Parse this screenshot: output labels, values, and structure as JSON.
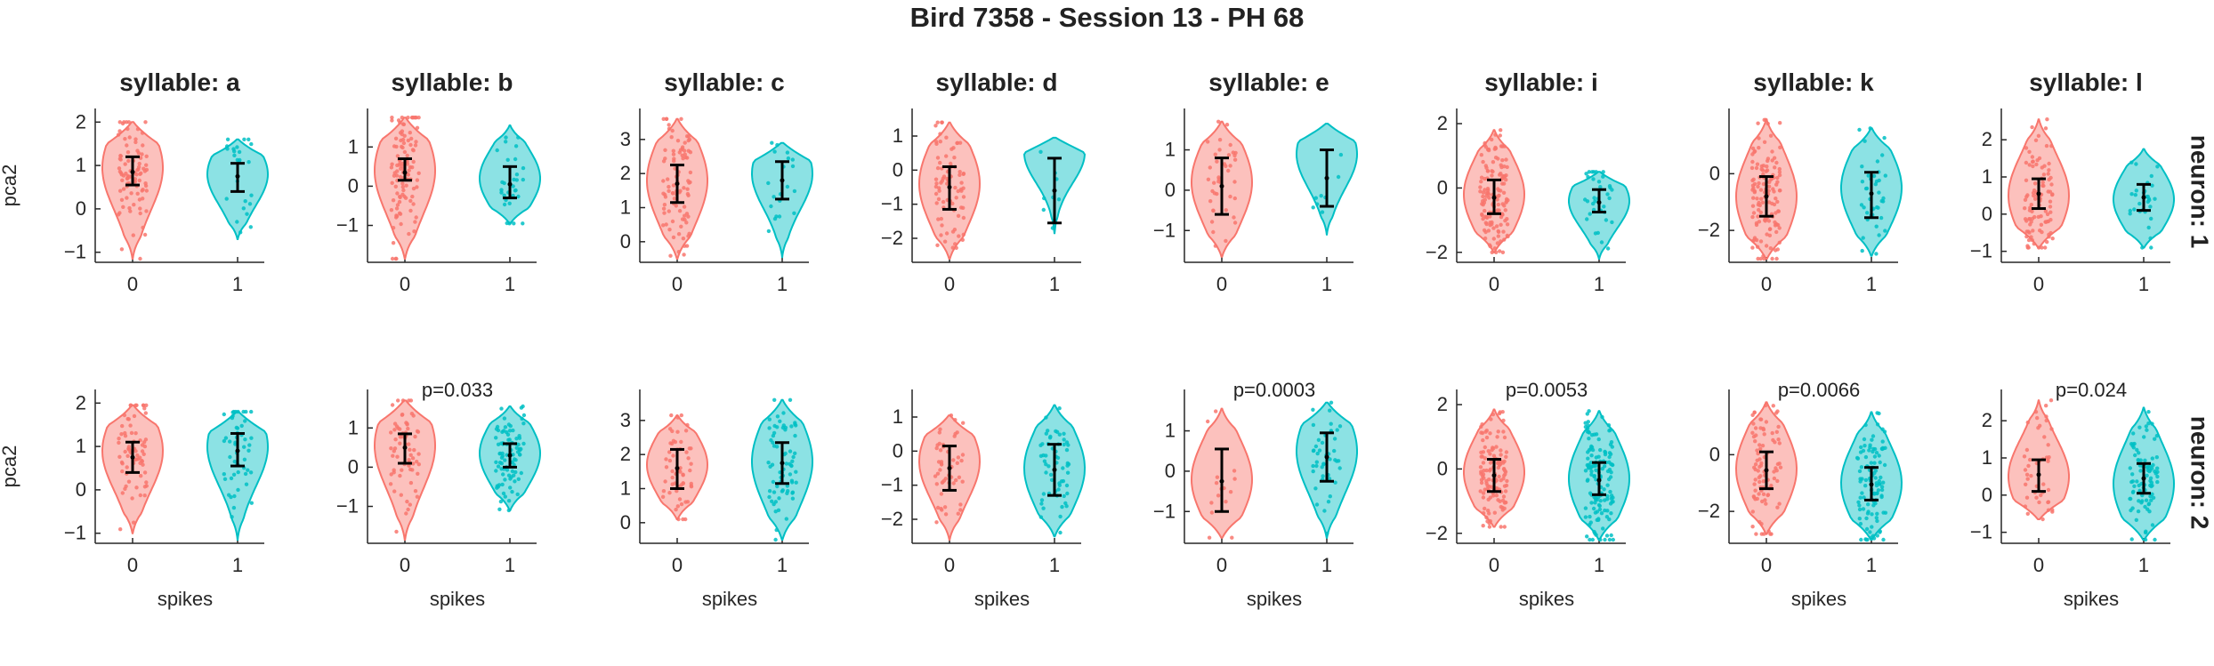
{
  "figure": {
    "title": "Bird 7358 - Session 13 - PH 68",
    "y_axis_label": "pca2",
    "x_axis_label": "spikes",
    "row_label_prefix": "neuron: ",
    "column_label_prefix": "syllable: ",
    "colors": {
      "spikes_0": "#F8766D",
      "spikes_1": "#00BFC4",
      "error_bar": "#000000"
    }
  },
  "chart_data": {
    "type": "violin",
    "x_categories": [
      "0",
      "1"
    ],
    "columns": [
      "a",
      "b",
      "c",
      "d",
      "e",
      "i",
      "k",
      "l"
    ],
    "rows": [
      "1",
      "2"
    ],
    "panels": [
      {
        "row": "1",
        "column": "a",
        "yticks": [
          -1,
          0,
          1,
          2
        ],
        "ylim": [
          -1.15,
          2.15
        ],
        "p_value": "",
        "groups": [
          {
            "spikes": "0",
            "mean": 0.85,
            "err_low": 0.55,
            "err_high": 1.2,
            "min": -1.15,
            "max": 2.0,
            "peak": 0.95,
            "n": 90
          },
          {
            "spikes": "1",
            "mean": 0.75,
            "err_low": 0.4,
            "err_high": 1.05,
            "min": -0.7,
            "max": 1.6,
            "peak": 0.8,
            "n": 25
          }
        ]
      },
      {
        "row": "1",
        "column": "b",
        "yticks": [
          -1,
          0,
          1
        ],
        "ylim": [
          -1.85,
          1.8
        ],
        "p_value": "",
        "groups": [
          {
            "spikes": "0",
            "mean": 0.35,
            "err_low": 0.15,
            "err_high": 0.7,
            "min": -1.85,
            "max": 1.75,
            "peak": 0.4,
            "n": 110
          },
          {
            "spikes": "1",
            "mean": 0.05,
            "err_low": -0.3,
            "err_high": 0.5,
            "min": -0.95,
            "max": 1.55,
            "peak": 0.2,
            "n": 30
          }
        ]
      },
      {
        "row": "1",
        "column": "c",
        "yticks": [
          0,
          1,
          2,
          3
        ],
        "ylim": [
          -0.5,
          3.7
        ],
        "p_value": "",
        "groups": [
          {
            "spikes": "0",
            "mean": 1.7,
            "err_low": 1.15,
            "err_high": 2.25,
            "min": -0.5,
            "max": 3.6,
            "peak": 1.8,
            "n": 90
          },
          {
            "spikes": "1",
            "mean": 1.8,
            "err_low": 1.25,
            "err_high": 2.35,
            "min": -0.45,
            "max": 2.9,
            "peak": 2.0,
            "n": 20
          }
        ]
      },
      {
        "row": "1",
        "column": "d",
        "yticks": [
          -2,
          -1,
          0,
          1
        ],
        "ylim": [
          -2.6,
          1.6
        ],
        "p_value": "",
        "groups": [
          {
            "spikes": "0",
            "mean": -0.5,
            "err_low": -1.15,
            "err_high": 0.1,
            "min": -2.6,
            "max": 1.4,
            "peak": -0.4,
            "n": 80
          },
          {
            "spikes": "1",
            "mean": -0.6,
            "err_low": -1.55,
            "err_high": 0.35,
            "min": -1.85,
            "max": 0.95,
            "peak": 0.5,
            "n": 8
          }
        ]
      },
      {
        "row": "1",
        "column": "e",
        "yticks": [
          -1,
          0,
          1
        ],
        "ylim": [
          -1.7,
          1.85
        ],
        "p_value": "",
        "groups": [
          {
            "spikes": "0",
            "mean": 0.1,
            "err_low": -0.6,
            "err_high": 0.8,
            "min": -1.65,
            "max": 1.7,
            "peak": 0.2,
            "n": 40
          },
          {
            "spikes": "1",
            "mean": 0.3,
            "err_low": -0.4,
            "err_high": 1.0,
            "min": -1.1,
            "max": 1.65,
            "peak": 0.9,
            "n": 8
          }
        ]
      },
      {
        "row": "1",
        "column": "i",
        "yticks": [
          -2,
          0,
          2
        ],
        "ylim": [
          -2.2,
          2.25
        ],
        "p_value": "",
        "groups": [
          {
            "spikes": "0",
            "mean": -0.3,
            "err_low": -0.8,
            "err_high": 0.25,
            "min": -2.0,
            "max": 1.8,
            "peak": -0.2,
            "n": 160
          },
          {
            "spikes": "1",
            "mean": -0.45,
            "err_low": -0.75,
            "err_high": -0.05,
            "min": -2.2,
            "max": 0.5,
            "peak": -0.4,
            "n": 35
          }
        ]
      },
      {
        "row": "1",
        "column": "k",
        "yticks": [
          -2,
          0
        ],
        "ylim": [
          -3.0,
          2.05
        ],
        "p_value": "",
        "groups": [
          {
            "spikes": "0",
            "mean": -0.8,
            "err_low": -1.5,
            "err_high": -0.1,
            "min": -3.0,
            "max": 1.9,
            "peak": -0.8,
            "n": 130
          },
          {
            "spikes": "1",
            "mean": -0.7,
            "err_low": -1.55,
            "err_high": 0.05,
            "min": -2.9,
            "max": 1.6,
            "peak": -0.5,
            "n": 40
          }
        ]
      },
      {
        "row": "1",
        "column": "l",
        "yticks": [
          -1,
          0,
          1,
          2
        ],
        "ylim": [
          -1.2,
          2.65
        ],
        "p_value": "",
        "groups": [
          {
            "spikes": "0",
            "mean": 0.55,
            "err_low": 0.15,
            "err_high": 0.95,
            "min": -0.9,
            "max": 2.55,
            "peak": 0.5,
            "n": 100
          },
          {
            "spikes": "1",
            "mean": 0.45,
            "err_low": 0.1,
            "err_high": 0.8,
            "min": -0.9,
            "max": 1.75,
            "peak": 0.4,
            "n": 30
          }
        ]
      },
      {
        "row": "2",
        "column": "a",
        "yticks": [
          -1,
          0,
          1,
          2
        ],
        "ylim": [
          -1.15,
          2.15
        ],
        "p_value": "",
        "groups": [
          {
            "spikes": "0",
            "mean": 0.75,
            "err_low": 0.4,
            "err_high": 1.1,
            "min": -1.0,
            "max": 1.95,
            "peak": 0.9,
            "n": 70
          },
          {
            "spikes": "1",
            "mean": 0.9,
            "err_low": 0.55,
            "err_high": 1.3,
            "min": -1.15,
            "max": 1.8,
            "peak": 1.0,
            "n": 50
          }
        ]
      },
      {
        "row": "2",
        "column": "b",
        "yticks": [
          -1,
          0,
          1
        ],
        "ylim": [
          -1.85,
          1.8
        ],
        "p_value": "p=0.033",
        "groups": [
          {
            "spikes": "0",
            "mean": 0.5,
            "err_low": 0.1,
            "err_high": 0.85,
            "min": -1.85,
            "max": 1.7,
            "peak": 0.55,
            "n": 70
          },
          {
            "spikes": "1",
            "mean": 0.3,
            "err_low": 0.0,
            "err_high": 0.6,
            "min": -1.1,
            "max": 1.55,
            "peak": 0.35,
            "n": 90
          }
        ]
      },
      {
        "row": "2",
        "column": "c",
        "yticks": [
          0,
          1,
          2,
          3
        ],
        "ylim": [
          -0.5,
          3.7
        ],
        "p_value": "",
        "groups": [
          {
            "spikes": "0",
            "mean": 1.6,
            "err_low": 1.0,
            "err_high": 2.15,
            "min": 0.1,
            "max": 3.15,
            "peak": 1.7,
            "n": 60
          },
          {
            "spikes": "1",
            "mean": 1.75,
            "err_low": 1.15,
            "err_high": 2.35,
            "min": -0.5,
            "max": 3.6,
            "peak": 1.8,
            "n": 70
          }
        ]
      },
      {
        "row": "2",
        "column": "d",
        "yticks": [
          -2,
          -1,
          0,
          1
        ],
        "ylim": [
          -2.6,
          1.6
        ],
        "p_value": "",
        "groups": [
          {
            "spikes": "0",
            "mean": -0.5,
            "err_low": -1.15,
            "err_high": 0.15,
            "min": -2.6,
            "max": 1.05,
            "peak": -0.3,
            "n": 50
          },
          {
            "spikes": "1",
            "mean": -0.55,
            "err_low": -1.3,
            "err_high": 0.2,
            "min": -2.5,
            "max": 1.35,
            "peak": -0.5,
            "n": 60
          }
        ]
      },
      {
        "row": "2",
        "column": "e",
        "yticks": [
          -1,
          0,
          1
        ],
        "ylim": [
          -1.7,
          1.85
        ],
        "p_value": "p=0.0003",
        "groups": [
          {
            "spikes": "0",
            "mean": -0.25,
            "err_low": -1.0,
            "err_high": 0.55,
            "min": -1.65,
            "max": 1.55,
            "peak": -0.2,
            "n": 15
          },
          {
            "spikes": "1",
            "mean": 0.35,
            "err_low": -0.25,
            "err_high": 0.95,
            "min": -1.65,
            "max": 1.7,
            "peak": 0.5,
            "n": 45
          }
        ]
      },
      {
        "row": "2",
        "column": "i",
        "yticks": [
          -2,
          0,
          2
        ],
        "ylim": [
          -2.2,
          2.25
        ],
        "p_value": "p=0.0053",
        "groups": [
          {
            "spikes": "0",
            "mean": -0.2,
            "err_low": -0.7,
            "err_high": 0.3,
            "min": -1.8,
            "max": 1.85,
            "peak": -0.1,
            "n": 130
          },
          {
            "spikes": "1",
            "mean": -0.35,
            "err_low": -0.8,
            "err_high": 0.2,
            "min": -2.2,
            "max": 1.8,
            "peak": -0.3,
            "n": 140
          }
        ]
      },
      {
        "row": "2",
        "column": "k",
        "yticks": [
          -2,
          0
        ],
        "ylim": [
          -3.0,
          2.05
        ],
        "p_value": "p=0.0066",
        "groups": [
          {
            "spikes": "0",
            "mean": -0.55,
            "err_low": -1.2,
            "err_high": 0.1,
            "min": -2.8,
            "max": 1.85,
            "peak": -0.5,
            "n": 90
          },
          {
            "spikes": "1",
            "mean": -1.05,
            "err_low": -1.6,
            "err_high": -0.45,
            "min": -3.0,
            "max": 1.5,
            "peak": -1.0,
            "n": 110
          }
        ]
      },
      {
        "row": "2",
        "column": "l",
        "yticks": [
          -1,
          0,
          1,
          2
        ],
        "ylim": [
          -1.2,
          2.65
        ],
        "p_value": "p=0.024",
        "groups": [
          {
            "spikes": "0",
            "mean": 0.55,
            "err_low": 0.1,
            "err_high": 0.95,
            "min": -0.65,
            "max": 2.55,
            "peak": 0.5,
            "n": 45
          },
          {
            "spikes": "1",
            "mean": 0.45,
            "err_low": 0.05,
            "err_high": 0.85,
            "min": -1.2,
            "max": 2.35,
            "peak": 0.3,
            "n": 90
          }
        ]
      }
    ]
  }
}
